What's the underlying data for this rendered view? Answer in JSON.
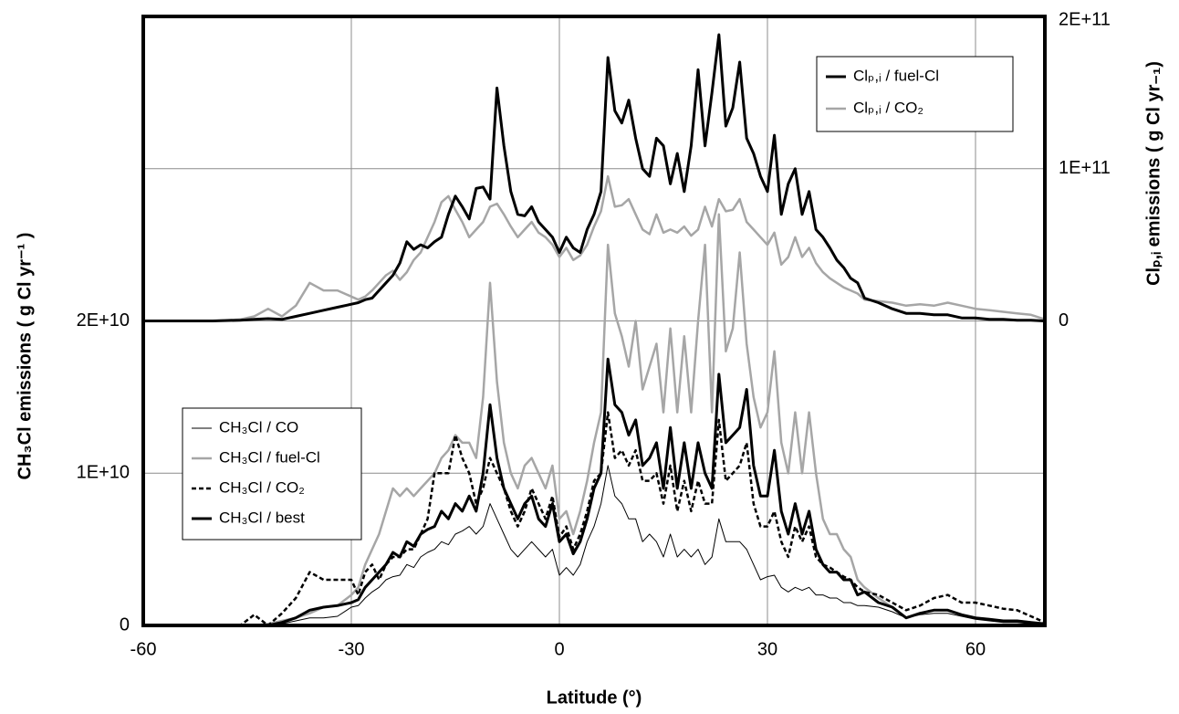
{
  "chart_data": {
    "type": "line",
    "x_label": "Latitude   (°)",
    "y_label": "CH₃Cl emissions  ( g Cl yr⁻¹ )",
    "y2_label": "Clₚ,ᵢ emissions  ( g Cl yr₋₁)",
    "xlim": [
      -60,
      70
    ],
    "xticks": [
      -60,
      -30,
      0,
      30,
      60
    ],
    "ylim": [
      0,
      40000000000.0
    ],
    "yticks": [
      0,
      {
        "value": 10000000000.0,
        "label": "1E+10"
      },
      {
        "value": 20000000000.0,
        "label": "2E+10"
      }
    ],
    "y2lim": [
      -200000000000.0,
      200000000000.0
    ],
    "y2ticks": [
      0,
      {
        "value": 100000000000.0,
        "label": "1E+11"
      },
      {
        "value": 200000000000.0,
        "label": "2E+11"
      }
    ],
    "grid": true,
    "x": [
      -60,
      -50,
      -46,
      -44,
      -42,
      -40,
      -38,
      -36,
      -34,
      -32,
      -30,
      -29,
      -28,
      -27,
      -26,
      -25,
      -24,
      -23,
      -22,
      -21,
      -20,
      -19,
      -18,
      -17,
      -16,
      -15,
      -14,
      -13,
      -12,
      -11,
      -10,
      -9,
      -8,
      -7,
      -6,
      -5,
      -4,
      -3,
      -2,
      -1,
      0,
      1,
      2,
      3,
      4,
      5,
      6,
      7,
      8,
      9,
      10,
      11,
      12,
      13,
      14,
      15,
      16,
      17,
      18,
      19,
      20,
      21,
      22,
      23,
      24,
      25,
      26,
      27,
      28,
      29,
      30,
      31,
      32,
      33,
      34,
      35,
      36,
      37,
      38,
      39,
      40,
      41,
      42,
      43,
      44,
      46,
      48,
      50,
      52,
      54,
      56,
      58,
      60,
      62,
      64,
      66,
      68,
      70
    ],
    "series": [
      {
        "name": "CH₃Cl / CO",
        "color": "#000000",
        "line_width": 1,
        "linestyle": "solid",
        "values": [
          0,
          0,
          0,
          0,
          0,
          100000000.0,
          300000000.0,
          500000000.0,
          500000000.0,
          600000000.0,
          1200000000.0,
          1300000000.0,
          1800000000.0,
          2200000000.0,
          2500000000.0,
          3000000000.0,
          3200000000.0,
          3300000000.0,
          4000000000.0,
          3800000000.0,
          4500000000.0,
          4800000000.0,
          5000000000.0,
          5500000000.0,
          5300000000.0,
          6000000000.0,
          6200000000.0,
          6500000000.0,
          6000000000.0,
          6500000000.0,
          8000000000.0,
          7000000000.0,
          6000000000.0,
          5000000000.0,
          4500000000.0,
          5000000000.0,
          5500000000.0,
          5000000000.0,
          4500000000.0,
          5000000000.0,
          3300000000.0,
          3800000000.0,
          3300000000.0,
          4000000000.0,
          5500000000.0,
          6500000000.0,
          8000000000.0,
          10500000000.0,
          8500000000.0,
          8000000000.0,
          7000000000.0,
          7000000000.0,
          5500000000.0,
          6000000000.0,
          5500000000.0,
          4500000000.0,
          6000000000.0,
          4500000000.0,
          5000000000.0,
          4500000000.0,
          5000000000.0,
          4000000000.0,
          4500000000.0,
          7000000000.0,
          5500000000.0,
          5500000000.0,
          5500000000.0,
          5000000000.0,
          4000000000.0,
          3000000000.0,
          3200000000.0,
          3300000000.0,
          2500000000.0,
          2200000000.0,
          2500000000.0,
          2300000000.0,
          2500000000.0,
          2000000000.0,
          2000000000.0,
          1800000000.0,
          1800000000.0,
          1500000000.0,
          1500000000.0,
          1300000000.0,
          1300000000.0,
          1200000000.0,
          900000000.0,
          500000000.0,
          700000000.0,
          800000000.0,
          800000000.0,
          600000000.0,
          400000000.0,
          300000000.0,
          200000000.0,
          200000000.0,
          100000000.0,
          100000000.0
        ]
      },
      {
        "name": "CH₃Cl / fuel-Cl",
        "color": "#a6a6a6",
        "line_width": 2.5,
        "linestyle": "solid",
        "values": [
          0,
          0,
          0,
          0,
          100000000.0,
          300000000.0,
          500000000.0,
          800000000.0,
          1200000000.0,
          1300000000.0,
          2000000000.0,
          2500000000.0,
          4000000000.0,
          5000000000.0,
          6000000000.0,
          7500000000.0,
          9000000000.0,
          8500000000.0,
          9000000000.0,
          8500000000.0,
          9000000000.0,
          9500000000.0,
          10000000000.0,
          11000000000.0,
          11500000000.0,
          12500000000.0,
          12000000000.0,
          12000000000.0,
          11000000000.0,
          15000000000.0,
          22500000000.0,
          16000000000.0,
          12000000000.0,
          10000000000.0,
          9000000000.0,
          10500000000.0,
          11000000000.0,
          10000000000.0,
          9000000000.0,
          10500000000.0,
          7000000000.0,
          7500000000.0,
          6000000000.0,
          7500000000.0,
          9500000000.0,
          12000000000.0,
          14000000000.0,
          25000000000.0,
          20500000000.0,
          19000000000.0,
          17000000000.0,
          20000000000.0,
          15500000000.0,
          17000000000.0,
          18500000000.0,
          14000000000.0,
          19500000000.0,
          14000000000.0,
          19000000000.0,
          14000000000.0,
          20000000000.0,
          25000000000.0,
          14000000000.0,
          27000000000.0,
          18000000000.0,
          19500000000.0,
          24500000000.0,
          18500000000.0,
          15000000000.0,
          13000000000.0,
          14000000000.0,
          18000000000.0,
          12000000000.0,
          10000000000.0,
          14000000000.0,
          10000000000.0,
          14000000000.0,
          10000000000.0,
          7000000000.0,
          6000000000.0,
          6000000000.0,
          5000000000.0,
          4500000000.0,
          3000000000.0,
          2500000000.0,
          1800000000.0,
          1200000000.0,
          500000000.0,
          800000000.0,
          1000000000.0,
          1000000000.0,
          700000000.0,
          500000000.0,
          400000000.0,
          300000000.0,
          300000000.0,
          200000000.0,
          100000000.0
        ]
      },
      {
        "name": "CH₃Cl / CO₂",
        "color": "#000000",
        "line_width": 2.5,
        "linestyle": "dashed",
        "values": [
          0,
          0,
          0,
          700000000.0,
          0,
          800000000.0,
          1800000000.0,
          3500000000.0,
          3000000000.0,
          3000000000.0,
          3000000000.0,
          2000000000.0,
          3500000000.0,
          4000000000.0,
          3000000000.0,
          4000000000.0,
          4500000000.0,
          4500000000.0,
          5000000000.0,
          5000000000.0,
          6000000000.0,
          7000000000.0,
          10000000000.0,
          10000000000.0,
          10000000000.0,
          12500000000.0,
          11000000000.0,
          10000000000.0,
          8000000000.0,
          9000000000.0,
          11000000000.0,
          10000000000.0,
          9000000000.0,
          7500000000.0,
          6500000000.0,
          7500000000.0,
          9000000000.0,
          8000000000.0,
          7000000000.0,
          8500000000.0,
          5800000000.0,
          6500000000.0,
          5000000000.0,
          6000000000.0,
          7500000000.0,
          9500000000.0,
          10000000000.0,
          14000000000.0,
          11000000000.0,
          11500000000.0,
          10500000000.0,
          11500000000.0,
          9500000000.0,
          9500000000.0,
          10000000000.0,
          8000000000.0,
          10500000000.0,
          7500000000.0,
          9500000000.0,
          7500000000.0,
          9500000000.0,
          8000000000.0,
          8000000000.0,
          13500000000.0,
          9500000000.0,
          10000000000.0,
          10500000000.0,
          12000000000.0,
          8000000000.0,
          6500000000.0,
          6500000000.0,
          7500000000.0,
          5500000000.0,
          4500000000.0,
          6500000000.0,
          5500000000.0,
          6500000000.0,
          4500000000.0,
          4000000000.0,
          3800000000.0,
          3500000000.0,
          3200000000.0,
          3000000000.0,
          2500000000.0,
          2200000000.0,
          2000000000.0,
          1500000000.0,
          1000000000.0,
          1300000000.0,
          1800000000.0,
          2000000000.0,
          1500000000.0,
          1500000000.0,
          1300000000.0,
          1100000000.0,
          1000000000.0,
          600000000.0,
          200000000.0
        ]
      },
      {
        "name": "CH₃Cl / best",
        "color": "#000000",
        "line_width": 3,
        "linestyle": "solid",
        "values": [
          0,
          0,
          0,
          0,
          0,
          200000000.0,
          500000000.0,
          1000000000.0,
          1200000000.0,
          1300000000.0,
          1500000000.0,
          1700000000.0,
          2500000000.0,
          3000000000.0,
          3500000000.0,
          4000000000.0,
          4800000000.0,
          4500000000.0,
          5500000000.0,
          5200000000.0,
          6000000000.0,
          6300000000.0,
          6500000000.0,
          7500000000.0,
          7000000000.0,
          8000000000.0,
          7500000000.0,
          8500000000.0,
          7500000000.0,
          10000000000.0,
          14500000000.0,
          11000000000.0,
          9000000000.0,
          8000000000.0,
          7000000000.0,
          8000000000.0,
          8500000000.0,
          7000000000.0,
          6500000000.0,
          8000000000.0,
          5500000000.0,
          6000000000.0,
          4700000000.0,
          5500000000.0,
          7000000000.0,
          9000000000.0,
          10000000000.0,
          17500000000.0,
          14500000000.0,
          14000000000.0,
          12500000000.0,
          13500000000.0,
          10500000000.0,
          11000000000.0,
          12000000000.0,
          9000000000.0,
          13000000000.0,
          9000000000.0,
          12000000000.0,
          9000000000.0,
          12000000000.0,
          10000000000.0,
          9000000000.0,
          16500000000.0,
          12000000000.0,
          12500000000.0,
          13000000000.0,
          15500000000.0,
          10500000000.0,
          8500000000.0,
          8500000000.0,
          11500000000.0,
          7500000000.0,
          6000000000.0,
          8000000000.0,
          6000000000.0,
          7500000000.0,
          5000000000.0,
          4000000000.0,
          3500000000.0,
          3500000000.0,
          3000000000.0,
          3000000000.0,
          2000000000.0,
          2200000000.0,
          1500000000.0,
          1200000000.0,
          500000000.0,
          800000000.0,
          1000000000.0,
          1000000000.0,
          700000000.0,
          500000000.0,
          400000000.0,
          300000000.0,
          300000000.0,
          200000000.0,
          100000000.0
        ]
      },
      {
        "name": "Clₚ,ᵢ / fuel-Cl",
        "color": "#000000",
        "line_width": 3,
        "linestyle": "solid",
        "axis": "y2",
        "values": [
          0,
          0,
          500000000.0,
          1000000000.0,
          1500000000.0,
          1000000000.0,
          3000000000.0,
          5000000000.0,
          7000000000.0,
          9000000000.0,
          11000000000.0,
          12000000000.0,
          14000000000.0,
          15000000000.0,
          20000000000.0,
          25000000000.0,
          30000000000.0,
          38000000000.0,
          52000000000.0,
          47000000000.0,
          50000000000.0,
          48000000000.0,
          52000000000.0,
          55000000000.0,
          70000000000.0,
          82000000000.0,
          75000000000.0,
          67000000000.0,
          87000000000.0,
          88000000000.0,
          80000000000.0,
          153000000000.0,
          115000000000.0,
          85000000000.0,
          70000000000.0,
          69000000000.0,
          75000000000.0,
          65000000000.0,
          60000000000.0,
          55000000000.0,
          45000000000.0,
          55000000000.0,
          48000000000.0,
          45000000000.0,
          60000000000.0,
          70000000000.0,
          85000000000.0,
          173000000000.0,
          138000000000.0,
          130000000000.0,
          145000000000.0,
          120000000000.0,
          100000000000.0,
          95000000000.0,
          120000000000.0,
          115000000000.0,
          90000000000.0,
          110000000000.0,
          85000000000.0,
          115000000000.0,
          165000000000.0,
          115000000000.0,
          150000000000.0,
          188000000000.0,
          128000000000.0,
          140000000000.0,
          170000000000.0,
          120000000000.0,
          110000000000.0,
          95000000000.0,
          85000000000.0,
          122000000000.0,
          70000000000.0,
          90000000000.0,
          100000000000.0,
          70000000000.0,
          85000000000.0,
          60000000000.0,
          55000000000.0,
          48000000000.0,
          40000000000.0,
          35000000000.0,
          28000000000.0,
          25000000000.0,
          15000000000.0,
          12000000000.0,
          8000000000.0,
          5000000000.0,
          5000000000.0,
          4000000000.0,
          4000000000.0,
          2000000000.0,
          2000000000.0,
          1000000000.0,
          1000000000.0,
          500000000.0,
          500000000.0,
          0
        ]
      },
      {
        "name": "Clₚ,ᵢ / CO₂",
        "color": "#a6a6a6",
        "line_width": 2.5,
        "linestyle": "solid",
        "axis": "y2",
        "values": [
          0,
          0,
          1000000000.0,
          3000000000.0,
          8000000000.0,
          3000000000.0,
          10000000000.0,
          25000000000.0,
          20000000000.0,
          20000000000.0,
          16000000000.0,
          14000000000.0,
          16000000000.0,
          20000000000.0,
          25000000000.0,
          30000000000.0,
          33000000000.0,
          27000000000.0,
          32000000000.0,
          40000000000.0,
          45000000000.0,
          55000000000.0,
          65000000000.0,
          78000000000.0,
          82000000000.0,
          73000000000.0,
          65000000000.0,
          55000000000.0,
          60000000000.0,
          65000000000.0,
          75000000000.0,
          77000000000.0,
          70000000000.0,
          62000000000.0,
          55000000000.0,
          60000000000.0,
          65000000000.0,
          58000000000.0,
          55000000000.0,
          50000000000.0,
          42000000000.0,
          48000000000.0,
          40000000000.0,
          43000000000.0,
          50000000000.0,
          62000000000.0,
          72000000000.0,
          95000000000.0,
          75000000000.0,
          76000000000.0,
          80000000000.0,
          70000000000.0,
          60000000000.0,
          57000000000.0,
          70000000000.0,
          58000000000.0,
          60000000000.0,
          58000000000.0,
          62000000000.0,
          56000000000.0,
          60000000000.0,
          75000000000.0,
          62000000000.0,
          80000000000.0,
          72000000000.0,
          73000000000.0,
          80000000000.0,
          65000000000.0,
          60000000000.0,
          55000000000.0,
          50000000000.0,
          58000000000.0,
          37000000000.0,
          42000000000.0,
          55000000000.0,
          42000000000.0,
          48000000000.0,
          38000000000.0,
          32000000000.0,
          28000000000.0,
          25000000000.0,
          22000000000.0,
          20000000000.0,
          18000000000.0,
          14000000000.0,
          13000000000.0,
          12000000000.0,
          10000000000.0,
          11000000000.0,
          10000000000.0,
          12000000000.0,
          10000000000.0,
          8000000000.0,
          7000000000.0,
          6000000000.0,
          5000000000.0,
          4000000000.0,
          1000000000.0
        ]
      }
    ]
  }
}
